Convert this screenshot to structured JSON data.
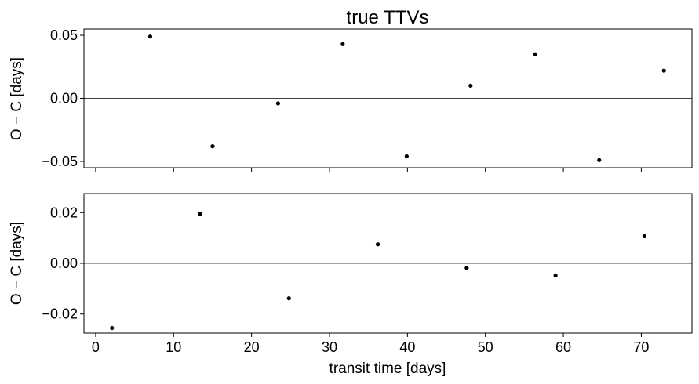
{
  "chart_data": [
    {
      "type": "scatter",
      "title": "true TTVs",
      "ylabel": "O − C [days]",
      "xlabel": "",
      "xlim": [
        -1.5,
        76.5
      ],
      "ylim": [
        -0.055,
        0.055
      ],
      "yticks": [
        -0.05,
        0.0,
        0.05
      ],
      "ytick_labels": [
        "−0.05",
        "0.00",
        "0.05"
      ],
      "xticks": [
        0,
        10,
        20,
        30,
        40,
        50,
        60,
        70
      ],
      "show_xtick_labels": false,
      "zero_line": true,
      "marker_color": "#000000",
      "points": [
        {
          "x": 7.0,
          "y": 0.049
        },
        {
          "x": 15.0,
          "y": -0.038
        },
        {
          "x": 23.4,
          "y": -0.004
        },
        {
          "x": 31.7,
          "y": 0.043
        },
        {
          "x": 39.9,
          "y": -0.046
        },
        {
          "x": 48.1,
          "y": 0.01
        },
        {
          "x": 56.4,
          "y": 0.035
        },
        {
          "x": 64.6,
          "y": -0.049
        },
        {
          "x": 72.9,
          "y": 0.022
        }
      ]
    },
    {
      "type": "scatter",
      "title": "",
      "ylabel": "O − C [days]",
      "xlabel": "transit time [days]",
      "xlim": [
        -1.5,
        76.5
      ],
      "ylim": [
        -0.0275,
        0.0275
      ],
      "yticks": [
        -0.02,
        0.0,
        0.02
      ],
      "ytick_labels": [
        "−0.02",
        "0.00",
        "0.02"
      ],
      "xticks": [
        0,
        10,
        20,
        30,
        40,
        50,
        60,
        70
      ],
      "xtick_labels": [
        "0",
        "10",
        "20",
        "30",
        "40",
        "50",
        "60",
        "70"
      ],
      "show_xtick_labels": true,
      "zero_line": true,
      "marker_color": "#000000",
      "points": [
        {
          "x": 2.1,
          "y": -0.0255
        },
        {
          "x": 13.4,
          "y": 0.0195
        },
        {
          "x": 24.8,
          "y": -0.0138
        },
        {
          "x": 36.2,
          "y": 0.0075
        },
        {
          "x": 47.6,
          "y": -0.0018
        },
        {
          "x": 59.0,
          "y": -0.0048
        },
        {
          "x": 70.4,
          "y": 0.0107
        }
      ]
    }
  ]
}
